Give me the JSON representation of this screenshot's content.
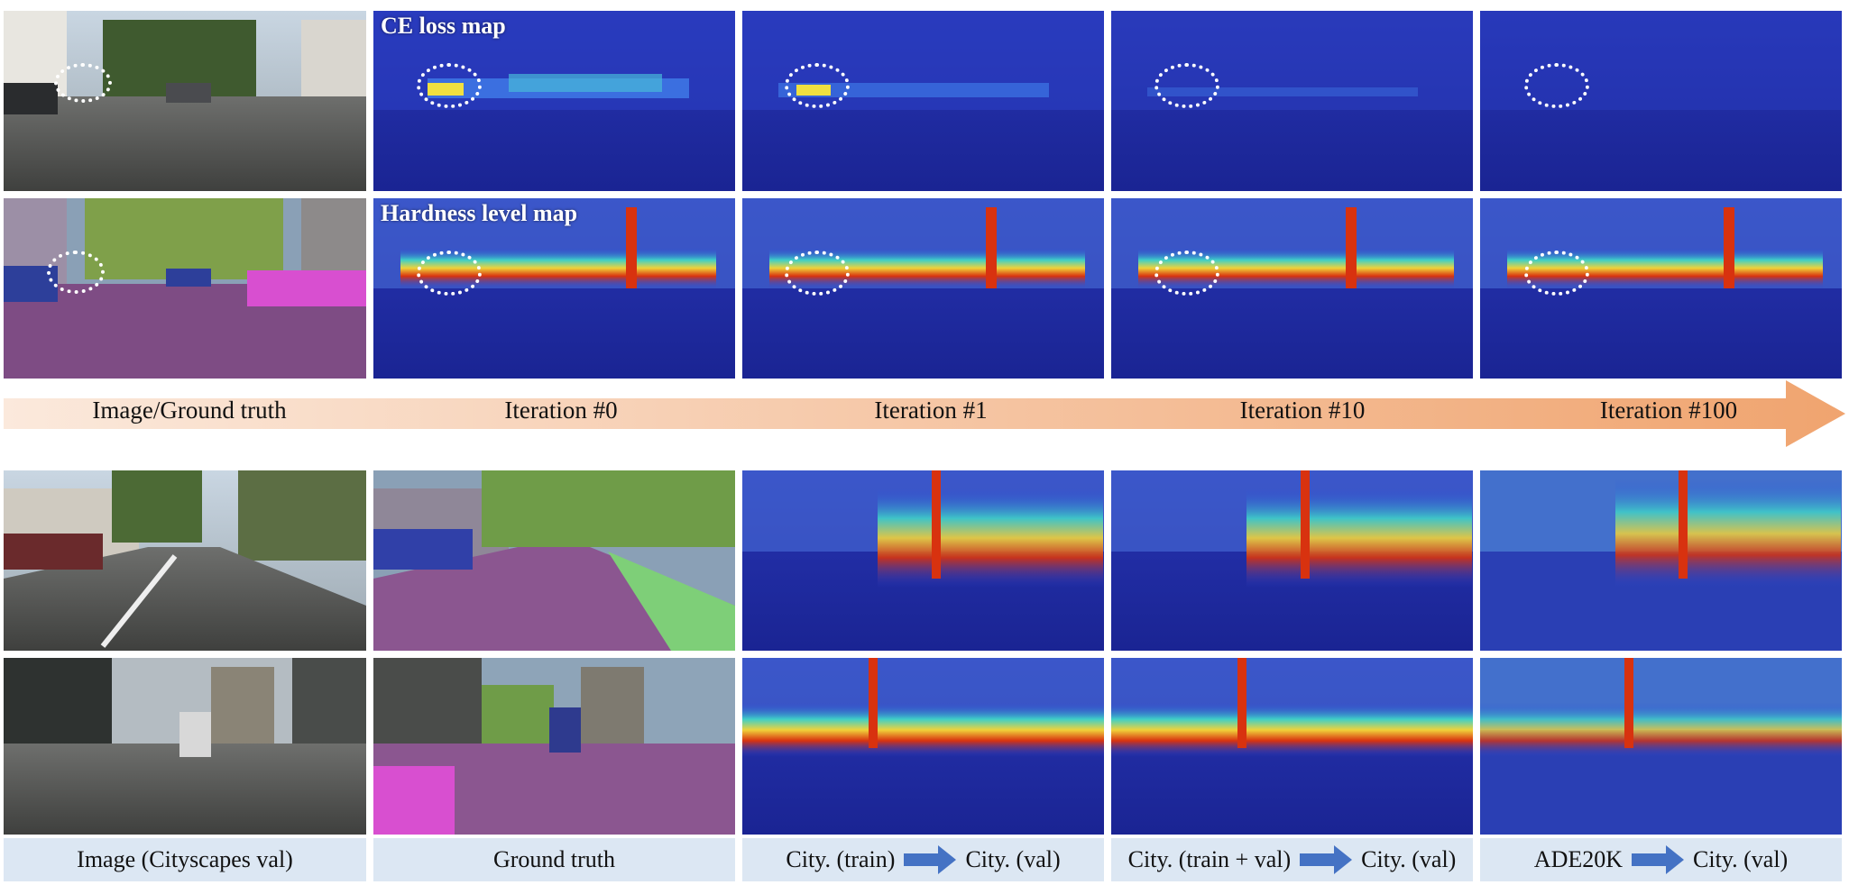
{
  "overlay_labels": {
    "ce_loss": "CE loss map",
    "hardness": "Hardness level map"
  },
  "iteration_steps": [
    {
      "label": "Image/Ground truth"
    },
    {
      "label": "Iteration #0"
    },
    {
      "label": "Iteration #1"
    },
    {
      "label": "Iteration #10"
    },
    {
      "label": "Iteration #100"
    }
  ],
  "bottom_captions": {
    "image": "Image (Cityscapes val)",
    "gt": "Ground truth",
    "city_train_left": "City. (train)",
    "city_train_right": "City. (val)",
    "city_trainval_left": "City. (train + val)",
    "city_trainval_right": "City. (val)",
    "ade_left": "ADE20K",
    "ade_right": "City. (val)"
  },
  "colors": {
    "arrow_start": "#fbe9dc",
    "arrow_end": "#f0a46f",
    "caption_bg": "#dce7f3",
    "caption_arrow": "#4472c4",
    "heat_low": "#1c2db8",
    "heat_high": "#c8200c"
  }
}
